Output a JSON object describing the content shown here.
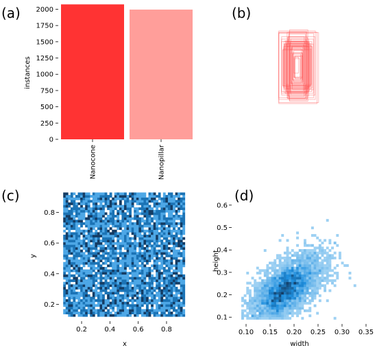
{
  "panel_labels": [
    "(a)",
    "(b)",
    "(c)",
    "(d)"
  ],
  "chart_data": [
    {
      "id": "a",
      "type": "bar",
      "categories": [
        "Nanocone",
        "Nanopillar"
      ],
      "values": [
        2075,
        1995
      ],
      "colors": [
        "#ff3333",
        "#ff9e9a"
      ],
      "title": "",
      "xlabel": "",
      "ylabel": "instances",
      "ylim": [
        0,
        2100
      ],
      "yticks": [
        0,
        250,
        500,
        750,
        1000,
        1250,
        1500,
        1750,
        2000
      ],
      "grid": false,
      "legend": "none"
    },
    {
      "id": "b",
      "type": "overlay-rectangles",
      "description_of_values": "boxes as [width, height] normalized, centered",
      "boxes": [
        [
          0.12,
          0.22
        ],
        [
          0.14,
          0.26
        ],
        [
          0.16,
          0.3
        ],
        [
          0.18,
          0.32
        ],
        [
          0.2,
          0.36
        ],
        [
          0.22,
          0.4
        ],
        [
          0.24,
          0.44
        ],
        [
          0.26,
          0.48
        ],
        [
          0.28,
          0.52
        ],
        [
          0.3,
          0.56
        ],
        [
          0.32,
          0.6
        ],
        [
          0.34,
          0.66
        ],
        [
          0.36,
          0.72
        ],
        [
          0.38,
          0.78
        ],
        [
          0.4,
          0.84
        ],
        [
          0.42,
          0.9
        ],
        [
          0.44,
          0.96
        ],
        [
          0.46,
          1.0
        ],
        [
          0.48,
          0.92
        ],
        [
          0.5,
          0.86
        ],
        [
          0.52,
          0.8
        ],
        [
          0.54,
          0.74
        ],
        [
          0.56,
          0.7
        ],
        [
          0.58,
          0.68
        ],
        [
          0.6,
          0.64
        ],
        [
          0.62,
          0.62
        ],
        [
          0.64,
          0.58
        ],
        [
          0.66,
          0.54
        ],
        [
          0.68,
          0.5
        ],
        [
          0.7,
          0.52
        ],
        [
          0.72,
          0.58
        ],
        [
          0.74,
          0.64
        ],
        [
          0.76,
          0.7
        ],
        [
          0.8,
          0.76
        ],
        [
          0.84,
          0.82
        ],
        [
          0.88,
          0.9
        ],
        [
          0.92,
          0.96
        ],
        [
          0.96,
          1.0
        ],
        [
          1.0,
          0.98
        ],
        [
          0.3,
          0.4
        ],
        [
          0.26,
          0.36
        ],
        [
          0.22,
          0.3
        ],
        [
          0.34,
          0.46
        ],
        [
          0.38,
          0.5
        ],
        [
          0.42,
          0.56
        ],
        [
          0.46,
          0.62
        ],
        [
          0.5,
          0.68
        ],
        [
          0.54,
          0.6
        ],
        [
          0.58,
          0.56
        ],
        [
          0.62,
          0.72
        ]
      ],
      "color": "#ff4d4d",
      "grid": false,
      "legend": "none"
    },
    {
      "id": "c",
      "type": "heatmap",
      "title": "",
      "xlabel": "x",
      "ylabel": "y",
      "xlim": [
        0.04,
        0.96
      ],
      "ylim": [
        0.09,
        0.95
      ],
      "xticks": [
        0.2,
        0.4,
        0.6,
        0.8
      ],
      "yticks": [
        0.2,
        0.4,
        0.6,
        0.8
      ],
      "bins": [
        50,
        50
      ],
      "data_range_x": [
        0.07,
        0.93
      ],
      "data_range_y": [
        0.12,
        0.93
      ],
      "distribution": "uniform",
      "color": "#1f8fde",
      "grid": false,
      "legend": "none"
    },
    {
      "id": "d",
      "type": "heatmap",
      "title": "",
      "xlabel": "width",
      "ylabel": "height",
      "xlim": [
        0.07,
        0.36
      ],
      "ylim": [
        0.07,
        0.67
      ],
      "xticks": [
        0.1,
        0.15,
        0.2,
        0.25,
        0.3,
        0.35
      ],
      "yticks": [
        0.1,
        0.2,
        0.3,
        0.4,
        0.5,
        0.6
      ],
      "bins": [
        50,
        50
      ],
      "center": [
        0.18,
        0.22
      ],
      "spread": [
        0.035,
        0.07
      ],
      "correlation": 0.6,
      "color": "#1f8fde",
      "grid": false,
      "legend": "none"
    }
  ]
}
